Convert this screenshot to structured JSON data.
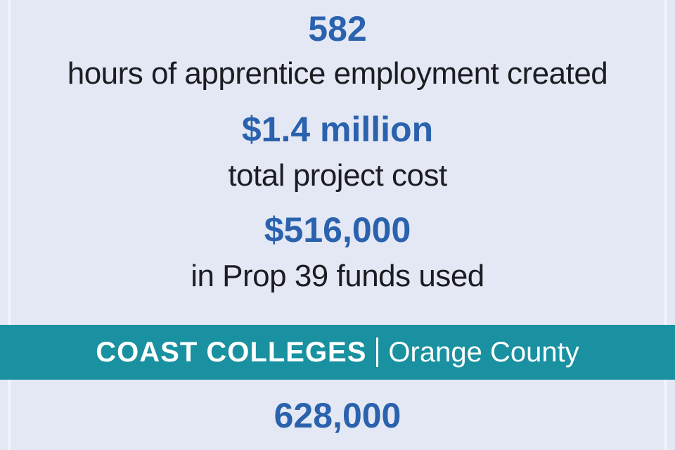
{
  "stats": [
    {
      "value": "582",
      "label": "hours of apprentice employment created"
    },
    {
      "value": "$1.4 million",
      "label": "total project cost"
    },
    {
      "value": "$516,000",
      "label": "in Prop 39 funds used"
    }
  ],
  "section": {
    "title": "COAST COLLEGES",
    "location": "Orange County"
  },
  "section_stats": [
    {
      "value": "628,000"
    }
  ]
}
